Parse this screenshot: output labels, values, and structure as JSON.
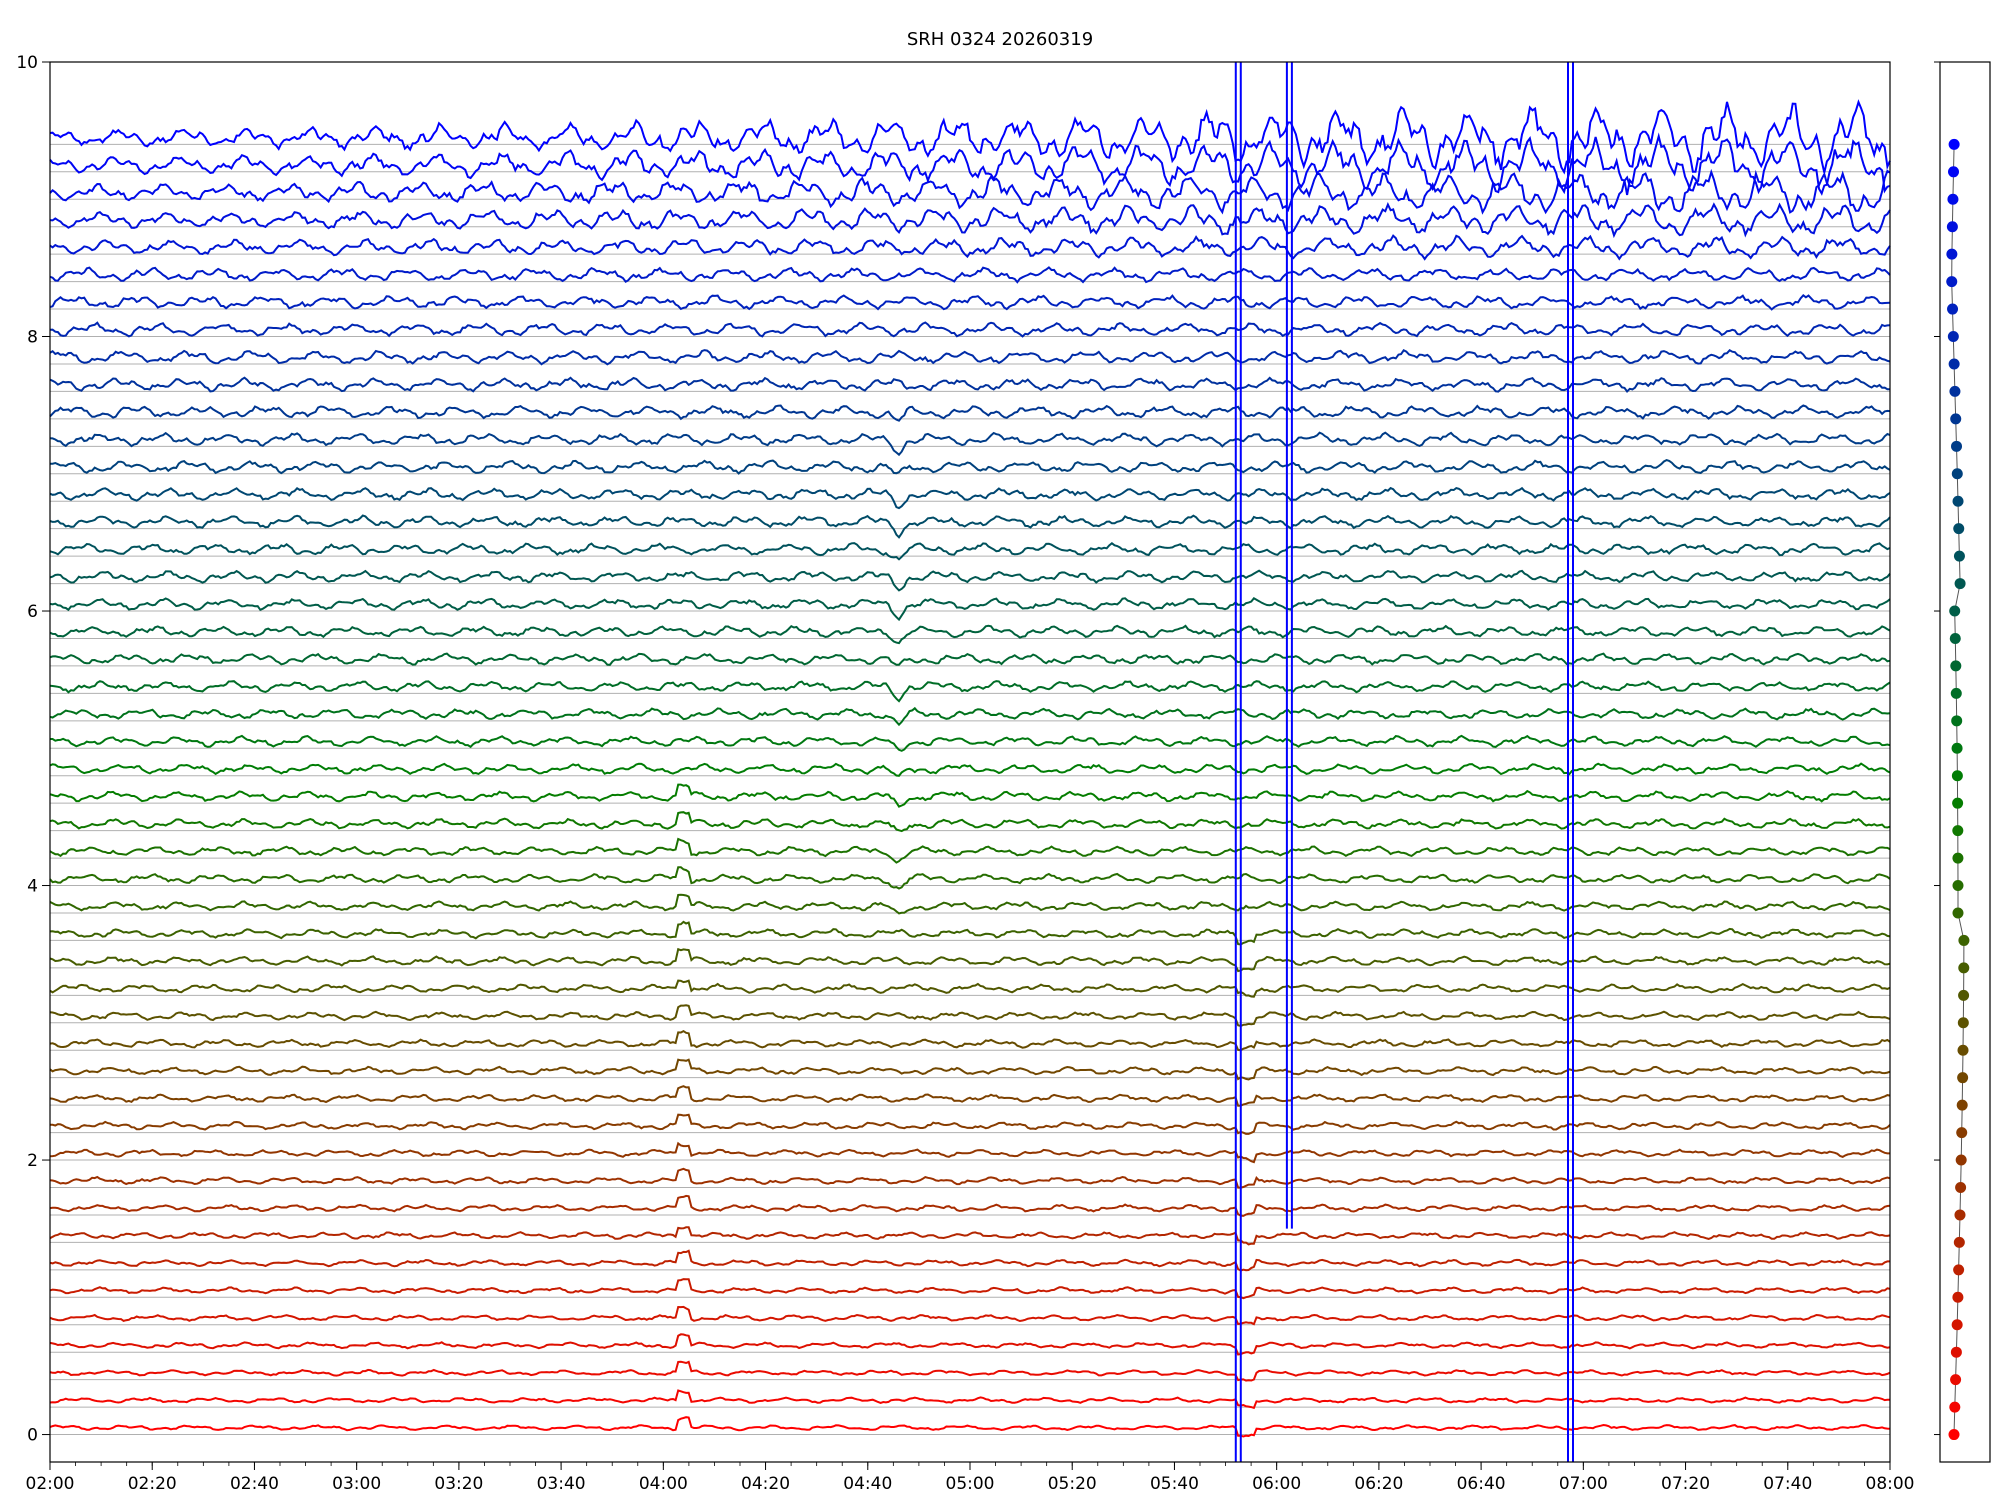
{
  "chart_data": {
    "type": "line",
    "title": "SRH 0324 20260319",
    "xlabel": "",
    "ylabel": "",
    "xlim": [
      "02:00",
      "08:00"
    ],
    "ylim": [
      -0.2,
      10
    ],
    "grid": true,
    "x_ticks": [
      "02:00",
      "02:20",
      "02:40",
      "03:00",
      "03:20",
      "03:40",
      "04:00",
      "04:20",
      "04:40",
      "05:00",
      "05:20",
      "05:40",
      "06:00",
      "06:20",
      "06:40",
      "07:00",
      "07:20",
      "07:40",
      "08:00"
    ],
    "y_ticks": [
      "0",
      "2",
      "4",
      "6",
      "8",
      "10"
    ],
    "channel_count": 48,
    "channel_spacing": 0.2,
    "first_channel_offset": 0.0,
    "last_channel_offset": 9.4,
    "color_top": "#0000ff",
    "color_middle": "#008000",
    "color_bottom": "#ff0000",
    "series": [
      {
        "name": "",
        "values": [
          0.0
        ]
      }
    ],
    "events": [
      {
        "time": "04:04",
        "kind": "spike",
        "channels": "low"
      },
      {
        "time": "04:46",
        "kind": "dip",
        "channels": "mid"
      },
      {
        "time": "05:52",
        "kind": "vertical-dropout",
        "channels": "all"
      },
      {
        "time": "06:02",
        "kind": "vertical-dropout",
        "channels": "upper"
      },
      {
        "time": "06:57",
        "kind": "vertical-dropout",
        "channels": "all"
      }
    ],
    "side_panel": {
      "type": "scatter",
      "description_points": 48
    }
  }
}
